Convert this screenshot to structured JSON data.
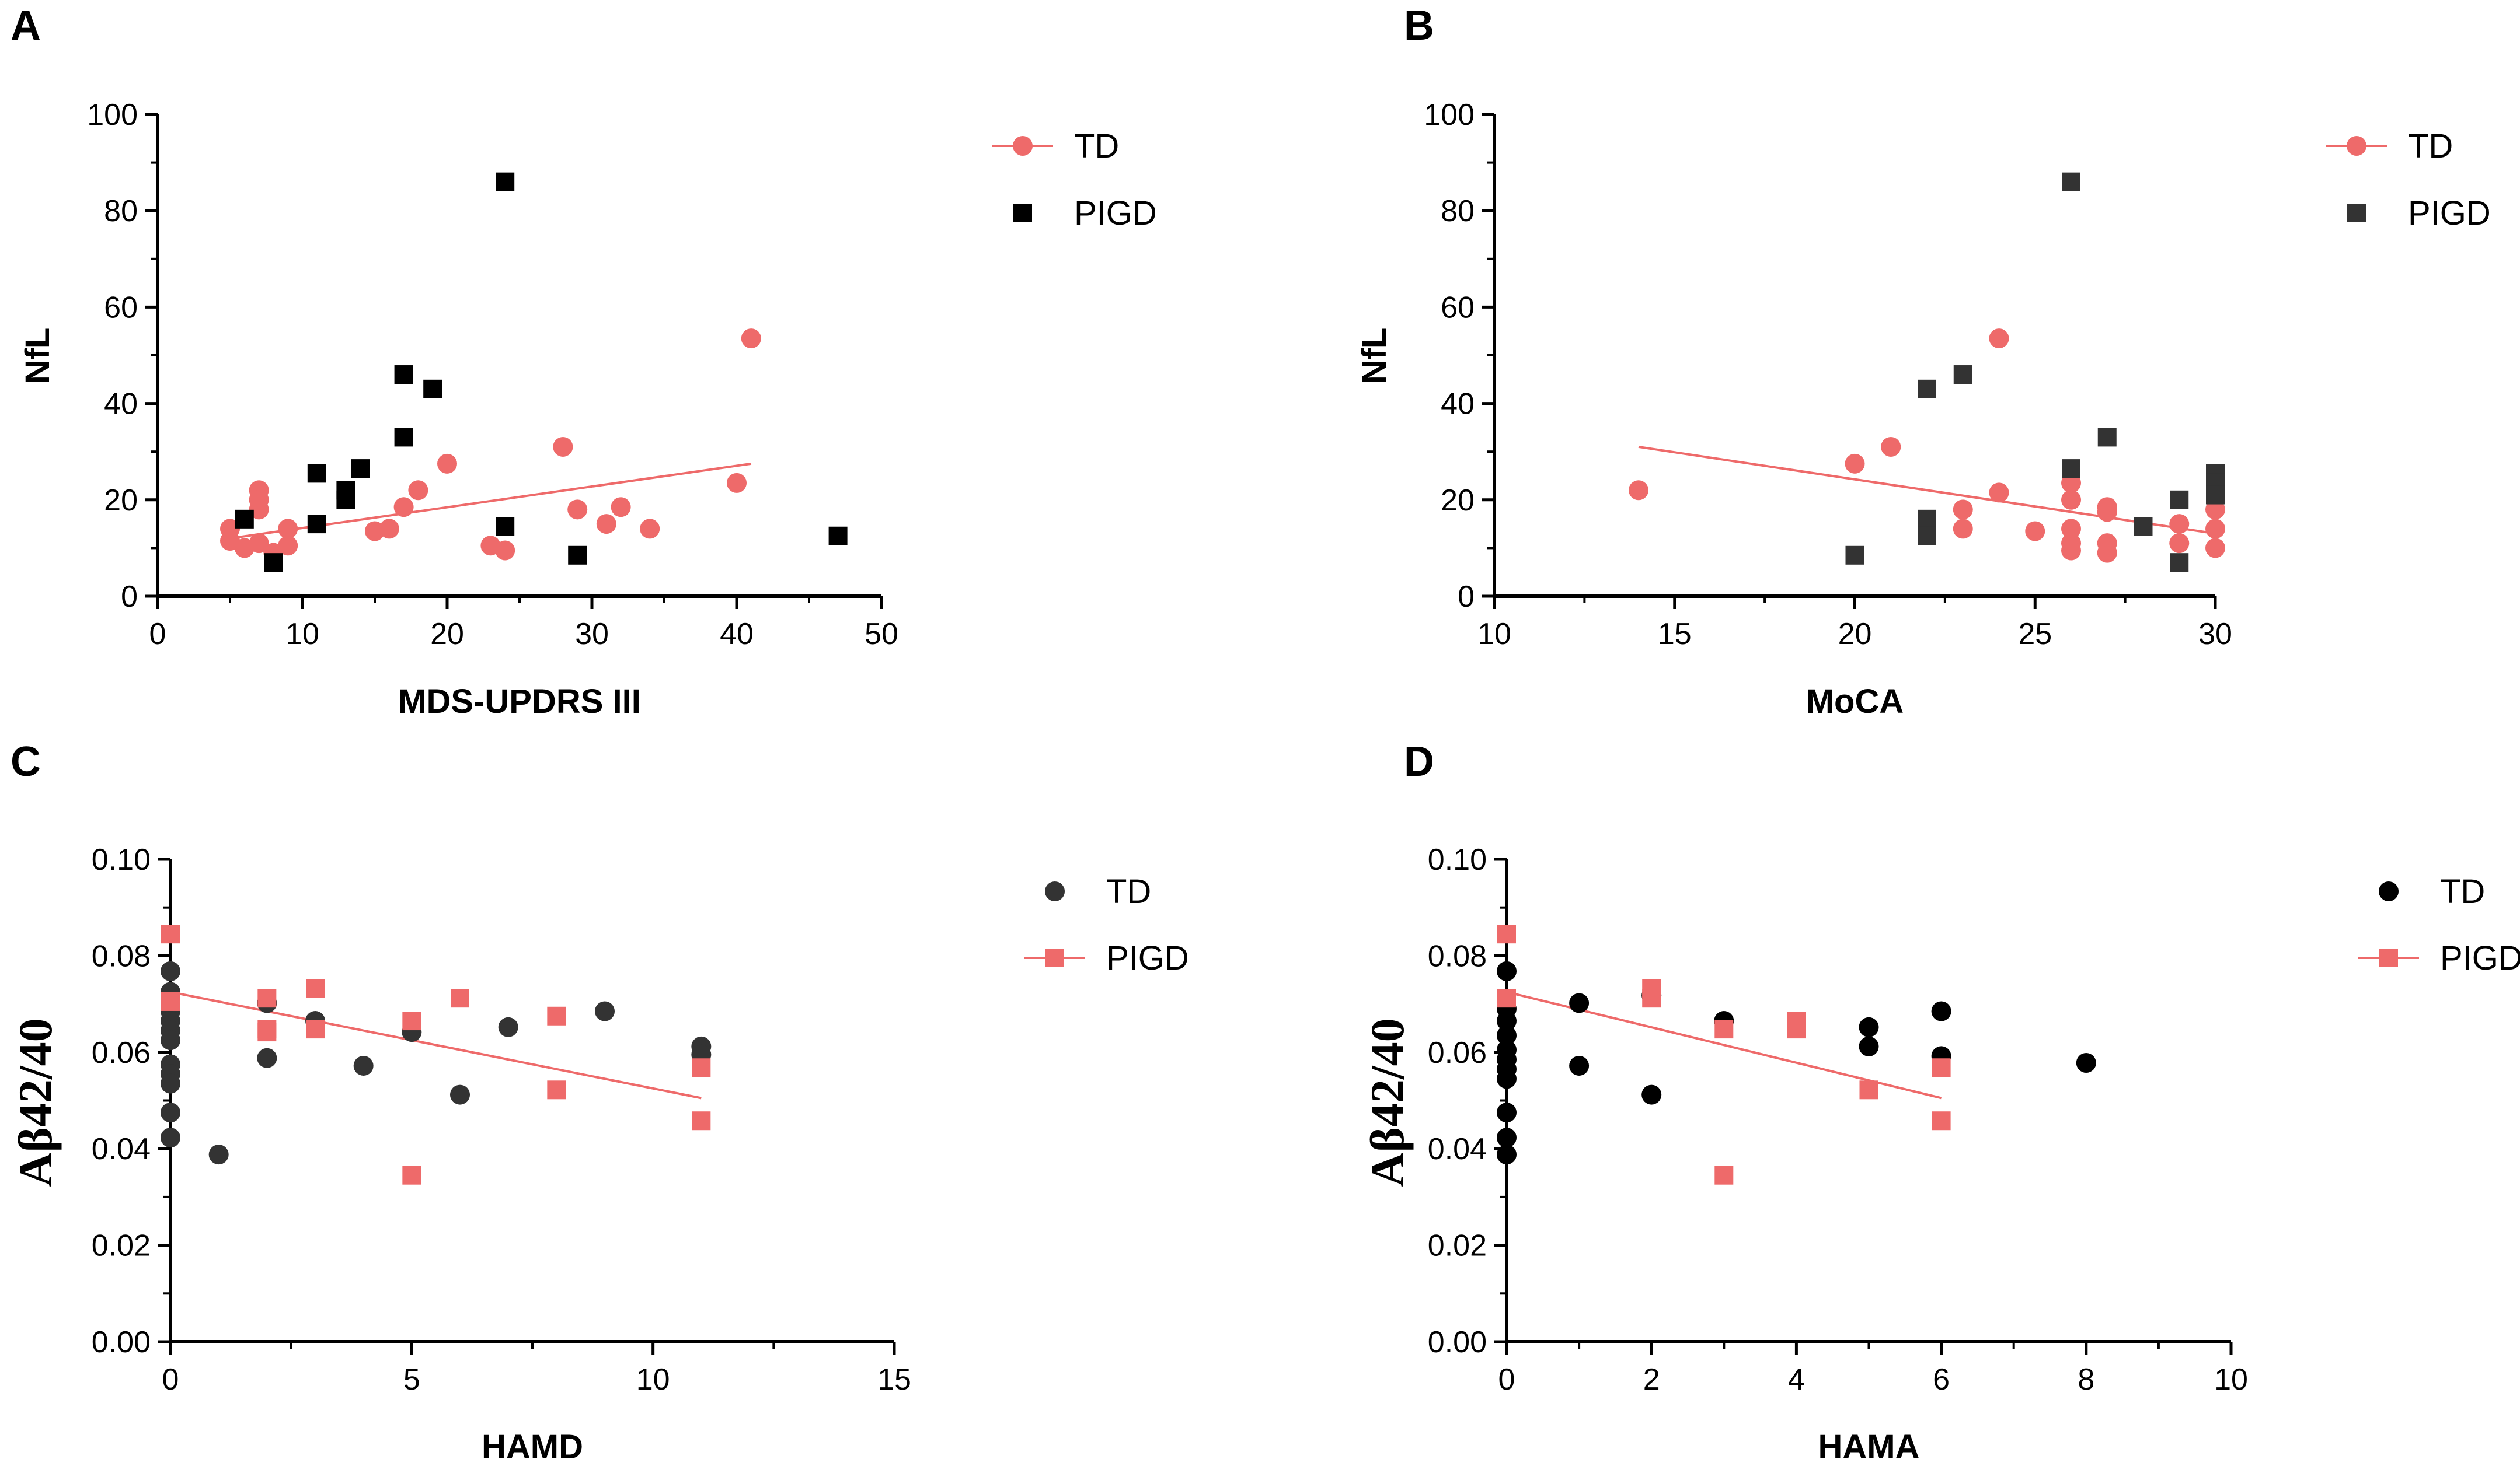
{
  "colors": {
    "td_red": "#ee6a6a",
    "dark": "#000000",
    "dark_gray": "#333333"
  },
  "chart_data": [
    {
      "panel": "A",
      "type": "scatter",
      "xlabel": "MDS-UPDRS III",
      "ylabel": "NfL",
      "xlim": [
        0,
        50
      ],
      "ylim": [
        0,
        100
      ],
      "xticks": [
        "0",
        "10",
        "20",
        "30",
        "40",
        "50"
      ],
      "yticks": [
        "0",
        "20",
        "40",
        "60",
        "80",
        "100"
      ],
      "legend_position": "right",
      "series": [
        {
          "name": "TD",
          "marker": "circle",
          "color": "#ee6a6a",
          "points": [
            [
              5,
              11.5
            ],
            [
              5,
              14
            ],
            [
              6,
              10
            ],
            [
              7,
              22
            ],
            [
              7,
              20
            ],
            [
              7,
              18
            ],
            [
              7,
              11
            ],
            [
              8,
              9
            ],
            [
              9,
              14
            ],
            [
              9,
              10.5
            ],
            [
              15,
              13.5
            ],
            [
              16,
              14
            ],
            [
              17,
              18.5
            ],
            [
              18,
              22
            ],
            [
              20,
              27.5
            ],
            [
              23,
              10.5
            ],
            [
              24,
              9.5
            ],
            [
              28,
              31
            ],
            [
              29,
              18
            ],
            [
              31,
              15
            ],
            [
              32,
              18.5
            ],
            [
              34,
              14
            ],
            [
              40,
              23.5
            ],
            [
              41,
              53.5
            ]
          ],
          "fit": {
            "x": [
              5,
              41
            ],
            "y": [
              12,
              27.5
            ]
          }
        },
        {
          "name": "PIGD",
          "marker": "square",
          "color": "#000000",
          "points": [
            [
              6,
              16
            ],
            [
              8,
              7
            ],
            [
              11,
              25.5
            ],
            [
              11,
              15
            ],
            [
              13,
              20
            ],
            [
              13,
              22
            ],
            [
              14,
              26.5
            ],
            [
              17,
              46
            ],
            [
              17,
              33
            ],
            [
              19,
              43
            ],
            [
              24,
              86
            ],
            [
              24,
              14.5
            ],
            [
              29,
              8.5
            ],
            [
              47,
              12.5
            ]
          ],
          "fit": null
        }
      ]
    },
    {
      "panel": "B",
      "type": "scatter",
      "xlabel": "MoCA",
      "ylabel": "NfL",
      "xlim": [
        10,
        30
      ],
      "ylim": [
        0,
        100
      ],
      "xticks": [
        "10",
        "15",
        "20",
        "25",
        "30"
      ],
      "yticks": [
        "0",
        "20",
        "40",
        "60",
        "80",
        "100"
      ],
      "legend_position": "right",
      "series": [
        {
          "name": "TD",
          "marker": "circle",
          "color": "#ee6a6a",
          "points": [
            [
              14,
              22
            ],
            [
              20,
              27.5
            ],
            [
              21,
              31
            ],
            [
              23,
              18
            ],
            [
              23,
              14
            ],
            [
              24,
              53.5
            ],
            [
              24,
              21.5
            ],
            [
              25,
              13.5
            ],
            [
              26,
              23.5
            ],
            [
              26,
              20
            ],
            [
              26,
              14
            ],
            [
              26,
              11
            ],
            [
              26,
              9.5
            ],
            [
              27,
              18.5
            ],
            [
              27,
              17.5
            ],
            [
              27,
              11
            ],
            [
              27,
              9
            ],
            [
              29,
              15
            ],
            [
              29,
              11
            ],
            [
              30,
              18
            ],
            [
              30,
              14
            ],
            [
              30,
              10
            ]
          ],
          "fit": {
            "x": [
              14,
              30
            ],
            "y": [
              31,
              13
            ]
          }
        },
        {
          "name": "PIGD",
          "marker": "square",
          "color": "#333333",
          "points": [
            [
              20,
              8.5
            ],
            [
              22,
              43
            ],
            [
              22,
              16
            ],
            [
              22,
              14.5
            ],
            [
              22,
              12.5
            ],
            [
              23,
              46
            ],
            [
              26,
              86
            ],
            [
              26,
              26.5
            ],
            [
              27,
              33
            ],
            [
              28,
              14.5
            ],
            [
              29,
              20
            ],
            [
              29,
              7
            ],
            [
              30,
              25.5
            ],
            [
              30,
              23.5
            ],
            [
              30,
              21
            ]
          ],
          "fit": null
        }
      ]
    },
    {
      "panel": "C",
      "type": "scatter",
      "xlabel": "HAMD",
      "ylabel": "Aβ42/40",
      "xlim": [
        0,
        15
      ],
      "ylim": [
        0,
        0.1
      ],
      "xticks": [
        "0",
        "5",
        "10",
        "15"
      ],
      "yticks": [
        "0.00",
        "0.02",
        "0.04",
        "0.06",
        "0.08",
        "0.10"
      ],
      "legend_position": "right",
      "series": [
        {
          "name": "TD",
          "marker": "circle",
          "color": "#333333",
          "points": [
            [
              0,
              0.0768
            ],
            [
              0,
              0.0725
            ],
            [
              0,
              0.0705
            ],
            [
              0,
              0.0685
            ],
            [
              0,
              0.0665
            ],
            [
              0,
              0.0645
            ],
            [
              0,
              0.0625
            ],
            [
              0,
              0.0575
            ],
            [
              0,
              0.0555
            ],
            [
              0,
              0.0535
            ],
            [
              0,
              0.0475
            ],
            [
              0,
              0.0423
            ],
            [
              1,
              0.0388
            ],
            [
              2,
              0.0702
            ],
            [
              2,
              0.0588
            ],
            [
              3,
              0.0665
            ],
            [
              4,
              0.0572
            ],
            [
              5,
              0.0642
            ],
            [
              6,
              0.0512
            ],
            [
              7,
              0.0652
            ],
            [
              9,
              0.0685
            ],
            [
              11,
              0.0612
            ],
            [
              11,
              0.0595
            ]
          ],
          "fit": null
        },
        {
          "name": "PIGD",
          "marker": "square",
          "color": "#ee6a6a",
          "points": [
            [
              0,
              0.0845
            ],
            [
              0,
              0.0705
            ],
            [
              2,
              0.0712
            ],
            [
              2,
              0.0648
            ],
            [
              2,
              0.0642
            ],
            [
              3,
              0.0732
            ],
            [
              3,
              0.0648
            ],
            [
              5,
              0.0665
            ],
            [
              5,
              0.0345
            ],
            [
              6,
              0.0712
            ],
            [
              8,
              0.0675
            ],
            [
              8,
              0.0522
            ],
            [
              11,
              0.0568
            ],
            [
              11,
              0.0458
            ]
          ],
          "fit": {
            "x": [
              0,
              11
            ],
            "y": [
              0.0725,
              0.0505
            ]
          }
        }
      ]
    },
    {
      "panel": "D",
      "type": "scatter",
      "xlabel": "HAMA",
      "ylabel": "Aβ42/40",
      "xlim": [
        0,
        10
      ],
      "ylim": [
        0,
        0.1
      ],
      "xticks": [
        "0",
        "2",
        "4",
        "6",
        "8",
        "10"
      ],
      "yticks": [
        "0.00",
        "0.02",
        "0.04",
        "0.06",
        "0.08",
        "0.10"
      ],
      "legend_position": "right",
      "series": [
        {
          "name": "TD",
          "marker": "circle",
          "color": "#000000",
          "points": [
            [
              0,
              0.0768
            ],
            [
              0,
              0.069
            ],
            [
              0,
              0.0665
            ],
            [
              0,
              0.0635
            ],
            [
              0,
              0.0605
            ],
            [
              0,
              0.0585
            ],
            [
              0,
              0.0565
            ],
            [
              0,
              0.0545
            ],
            [
              0,
              0.0475
            ],
            [
              0,
              0.0423
            ],
            [
              0,
              0.0388
            ],
            [
              1,
              0.0702
            ],
            [
              1,
              0.0572
            ],
            [
              2,
              0.0718
            ],
            [
              2,
              0.0512
            ],
            [
              3,
              0.0665
            ],
            [
              5,
              0.0652
            ],
            [
              5,
              0.0612
            ],
            [
              6,
              0.0685
            ],
            [
              6,
              0.0592
            ],
            [
              8,
              0.0578
            ]
          ],
          "fit": null
        },
        {
          "name": "PIGD",
          "marker": "square",
          "color": "#ee6a6a",
          "points": [
            [
              0,
              0.0845
            ],
            [
              0,
              0.0712
            ],
            [
              2,
              0.0732
            ],
            [
              2,
              0.0712
            ],
            [
              3,
              0.0648
            ],
            [
              3,
              0.0345
            ],
            [
              4,
              0.0665
            ],
            [
              4,
              0.0648
            ],
            [
              5,
              0.0522
            ],
            [
              6,
              0.0568
            ],
            [
              6,
              0.0458
            ]
          ],
          "fit": {
            "x": [
              0,
              6
            ],
            "y": [
              0.0725,
              0.0505
            ]
          }
        }
      ]
    }
  ]
}
